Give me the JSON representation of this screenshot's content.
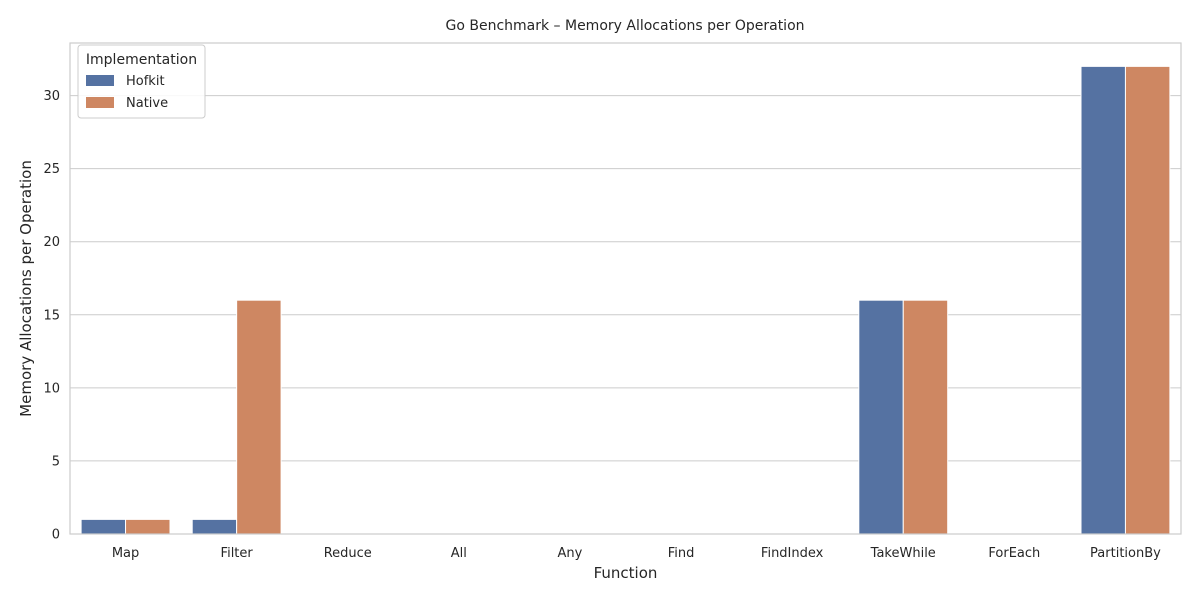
{
  "chart_data": {
    "type": "bar",
    "title": "Go Benchmark – Memory Allocations per Operation",
    "xlabel": "Function",
    "ylabel": "Memory Allocations per Operation",
    "categories": [
      "Map",
      "Filter",
      "Reduce",
      "All",
      "Any",
      "Find",
      "FindIndex",
      "TakeWhile",
      "ForEach",
      "PartitionBy"
    ],
    "series": [
      {
        "name": "Hofkit",
        "color": "#5572a2",
        "values": [
          1,
          1,
          0,
          0,
          0,
          0,
          0,
          16,
          0,
          32
        ]
      },
      {
        "name": "Native",
        "color": "#ce8762",
        "values": [
          1,
          16,
          0,
          0,
          0,
          0,
          0,
          16,
          0,
          32
        ]
      }
    ],
    "ylim": [
      0,
      33.6
    ],
    "yticks": [
      0,
      5,
      10,
      15,
      20,
      25,
      30
    ],
    "grid": true,
    "legend": {
      "title": "Implementation",
      "placement": "top-left"
    }
  }
}
